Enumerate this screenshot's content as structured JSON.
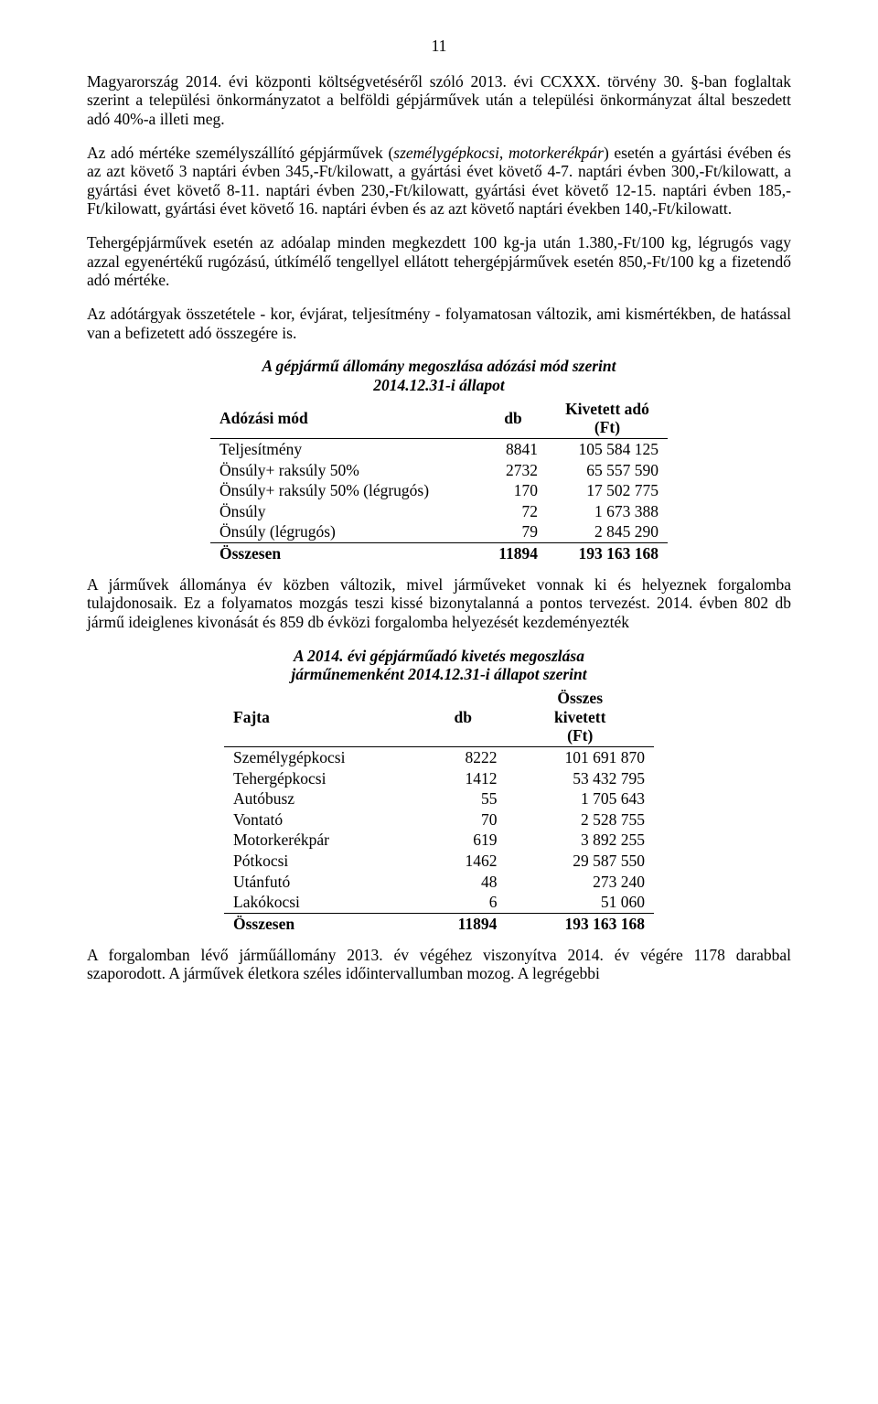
{
  "page_number": "11",
  "para1": "Magyarország 2014. évi központi költségvetéséről szóló 2013. évi CCXXX. törvény 30. §-ban foglaltak szerint a települési önkormányzatot a belföldi gépjárművek után a települési önkormányzat által beszedett adó 40%-a illeti meg.",
  "para2_a": "Az adó mértéke személyszállító gépjárművek (",
  "para2_b": "személygépkocsi, motorkerékpár",
  "para2_c": ") esetén a gyártási évében és az azt követő 3 naptári évben 345,-Ft/kilowatt, a gyártási évet követő 4-7. naptári évben 300,-Ft/kilowatt, a gyártási évet követő 8-11. naptári évben 230,-Ft/kilowatt, gyártási évet követő 12-15. naptári évben 185,-Ft/kilowatt, gyártási évet követő 16. naptári évben és az azt követő naptári években 140,-Ft/kilowatt.",
  "para3": "Tehergépjárművek esetén az adóalap minden megkezdett 100 kg-ja után 1.380,-Ft/100 kg, légrugós vagy azzal egyenértékű rugózású, útkímélő tengellyel ellátott tehergépjárművek esetén 850,-Ft/100 kg a fizetendő adó mértéke.",
  "para4": "Az adótárgyak összetétele - kor, évjárat, teljesítmény - folyamatosan változik, ami kismértékben, de hatással van a befizetett adó összegére is.",
  "table1": {
    "title": "A gépjármű állomány megoszlása adózási mód szerint",
    "subtitle": "2014.12.31-i állapot",
    "headers": [
      "Adózási mód",
      "db",
      "Kivetett adó (Ft)"
    ],
    "rows": [
      [
        "Teljesítmény",
        "8841",
        "105 584 125"
      ],
      [
        "Önsúly+ raksúly 50%",
        "2732",
        "65 557 590"
      ],
      [
        "Önsúly+ raksúly 50% (légrugós)",
        "170",
        "17 502 775"
      ],
      [
        "Önsúly",
        "72",
        "1 673 388"
      ],
      [
        "Önsúly (légrugós)",
        "79",
        "2 845 290"
      ]
    ],
    "sum": [
      "Összesen",
      "11894",
      "193 163 168"
    ]
  },
  "para5": "A járművek állománya év közben változik, mivel járműveket vonnak ki és helyeznek forgalomba tulajdonosaik.  Ez a folyamatos mozgás teszi kissé bizonytalanná a pontos tervezést. 2014. évben 802 db jármű ideiglenes kivonását és 859 db évközi forgalomba helyezését kezdeményezték",
  "table2": {
    "title": "A 2014. évi gépjárműadó kivetés megoszlása",
    "subtitle": "járműnemenként  2014.12.31-i állapot szerint",
    "headers": [
      "Fajta",
      "db",
      "Összes kivetett (Ft)"
    ],
    "rows": [
      [
        "Személygépkocsi",
        "8222",
        "101 691 870"
      ],
      [
        "Tehergépkocsi",
        "1412",
        "53 432 795"
      ],
      [
        "Autóbusz",
        "55",
        "1 705 643"
      ],
      [
        "Vontató",
        "70",
        "2 528 755"
      ],
      [
        "Motorkerékpár",
        "619",
        "3 892 255"
      ],
      [
        "Pótkocsi",
        "1462",
        "29 587 550"
      ],
      [
        "Utánfutó",
        "48",
        "273 240"
      ],
      [
        "Lakókocsi",
        "6",
        "51 060"
      ]
    ],
    "sum": [
      "Összesen",
      "11894",
      "193 163 168"
    ]
  },
  "para6": "A forgalomban lévő járműállomány 2013. év végéhez viszonyítva 2014. év végére 1178 darabbal szaporodott.  A járművek életkora széles időintervallumban mozog.  A legrégebbi"
}
